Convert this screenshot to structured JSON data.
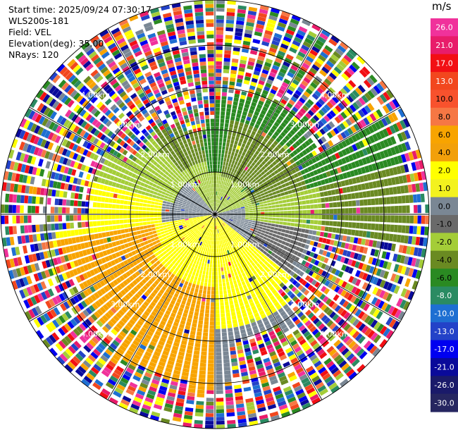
{
  "header": {
    "start_time": "Start time: 2025/09/24 07:30:17",
    "instrument": "WLS200s-181",
    "field": "Field: VEL",
    "elevation": "Elevation(deg): 35.00",
    "nrays": "NRays: 120"
  },
  "colorbar": {
    "unit": "m/s",
    "bins": [
      {
        "label": "26.0",
        "color": "#f0329b"
      },
      {
        "label": "21.0",
        "color": "#e81c6a"
      },
      {
        "label": "17.0",
        "color": "#f20f14"
      },
      {
        "label": "13.0",
        "color": "#f2471e"
      },
      {
        "label": "10.0",
        "color": "#f8522d"
      },
      {
        "label": "8.0",
        "color": "#f67744"
      },
      {
        "label": "6.0",
        "color": "#f8a400"
      },
      {
        "label": "4.0",
        "color": "#f2a00a"
      },
      {
        "label": "2.0",
        "color": "#ffff00"
      },
      {
        "label": "1.0",
        "color": "#f3f21e"
      },
      {
        "label": "0.0",
        "color": "#7a8794"
      },
      {
        "label": "-1.0",
        "color": "#6a6a6a"
      },
      {
        "label": "-2.0",
        "color": "#a4cd38"
      },
      {
        "label": "-4.0",
        "color": "#6a8a22"
      },
      {
        "label": "-6.0",
        "color": "#2a8a22"
      },
      {
        "label": "-8.0",
        "color": "#2a8b62"
      },
      {
        "label": "-10.0",
        "color": "#1e6fd2"
      },
      {
        "label": "-13.0",
        "color": "#2342c8"
      },
      {
        "label": "-17.0",
        "color": "#0000f0"
      },
      {
        "label": "-21.0",
        "color": "#0a0a9a"
      },
      {
        "label": "-26.0",
        "color": "#1a1a6a"
      },
      {
        "label": "-30.0",
        "color": "#262660"
      }
    ]
  },
  "range_rings": [
    {
      "label": "1.00km"
    },
    {
      "label": "2.00km"
    },
    {
      "label": "3.00km"
    },
    {
      "label": "4.00km"
    }
  ]
}
